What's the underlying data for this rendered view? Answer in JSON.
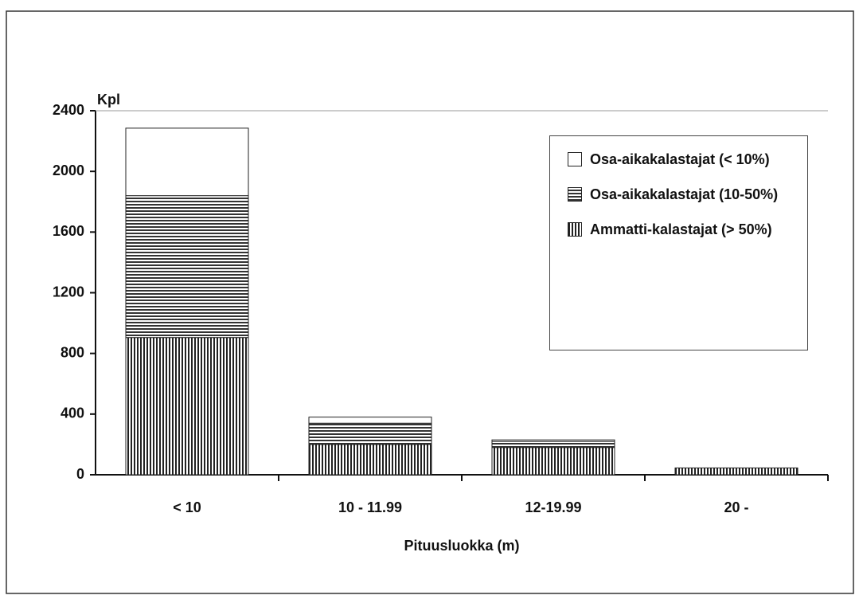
{
  "chart_data": {
    "type": "stacked_bar",
    "y_label": "Kpl",
    "x_label": "Pituusluokka (m)",
    "categories": [
      "< 10",
      "10 - 11.99",
      "12-19.99",
      "20 -"
    ],
    "series": [
      {
        "name": "Ammatti-kalastajat (> 50%)",
        "color": "#222222",
        "pattern": "vertical",
        "values": [
          905,
          200,
          180,
          45
        ]
      },
      {
        "name": "Osa-aikakalastajat (10-50%)",
        "color": "#222222",
        "pattern": "horizontal",
        "values": [
          935,
          140,
          40,
          0
        ]
      },
      {
        "name": "Osa-aikakalastajat (< 10%)",
        "color": "#222222",
        "pattern": "none",
        "values": [
          445,
          40,
          10,
          0
        ]
      }
    ],
    "ylim": [
      0,
      2400
    ],
    "yticks": [
      0,
      400,
      800,
      1200,
      1600,
      2000,
      2400
    ],
    "legend": "upper right"
  }
}
